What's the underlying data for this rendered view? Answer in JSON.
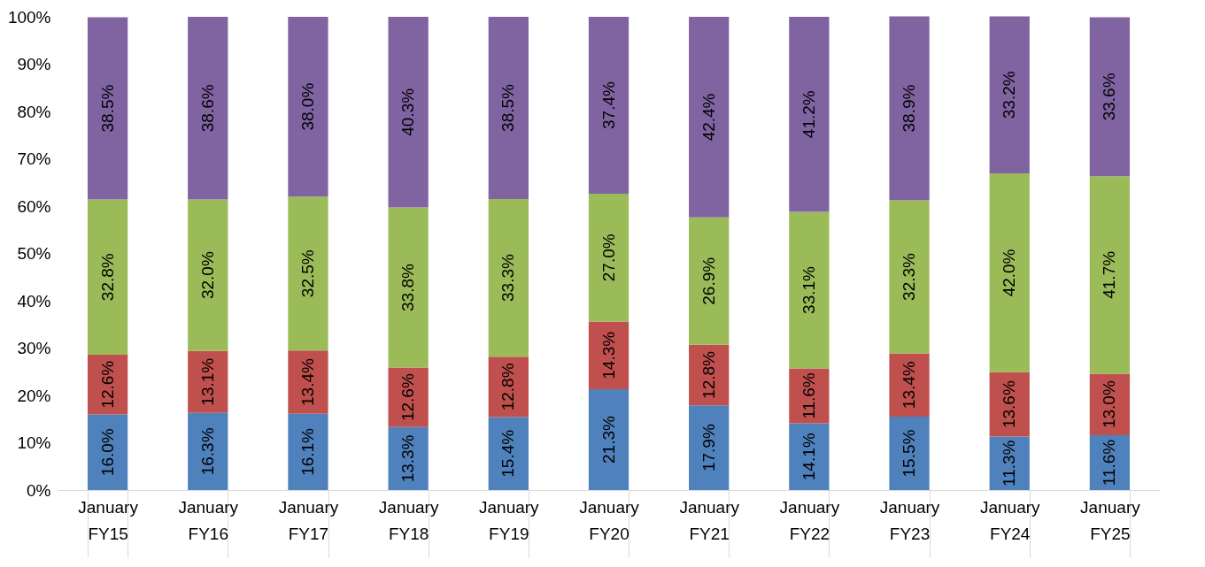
{
  "chart_data": {
    "type": "bar",
    "stacked": true,
    "categories": [
      "January\nFY15",
      "January\nFY16",
      "January\nFY17",
      "January\nFY18",
      "January\nFY19",
      "January\nFY20",
      "January\nFY21",
      "January\nFY22",
      "January\nFY23",
      "January\nFY24",
      "January\nFY25"
    ],
    "ylim": [
      0,
      100
    ],
    "yticks": [
      {
        "value": 0,
        "label": "0%"
      },
      {
        "value": 10,
        "label": "10%"
      },
      {
        "value": 20,
        "label": "20%"
      },
      {
        "value": 30,
        "label": "30%"
      },
      {
        "value": 40,
        "label": "40%"
      },
      {
        "value": 50,
        "label": "50%"
      },
      {
        "value": 60,
        "label": "60%"
      },
      {
        "value": 70,
        "label": "70%"
      },
      {
        "value": 80,
        "label": "80%"
      },
      {
        "value": 90,
        "label": "90%"
      },
      {
        "value": 100,
        "label": "100%"
      }
    ],
    "grid": false,
    "legend": false,
    "series": [
      {
        "color": "#4f81bd",
        "values": [
          16.0,
          16.3,
          16.1,
          13.3,
          15.4,
          21.3,
          17.9,
          14.1,
          15.5,
          11.3,
          11.6
        ],
        "value_labels": [
          "16.0%",
          "16.3%",
          "16.1%",
          "13.3%",
          "15.4%",
          "21.3%",
          "17.9%",
          "14.1%",
          "15.5%",
          "11.3%",
          "11.6%"
        ]
      },
      {
        "color": "#c0504d",
        "values": [
          12.6,
          13.1,
          13.4,
          12.6,
          12.8,
          14.3,
          12.8,
          11.6,
          13.4,
          13.6,
          13.0
        ],
        "value_labels": [
          "12.6%",
          "13.1%",
          "13.4%",
          "12.6%",
          "12.8%",
          "14.3%",
          "12.8%",
          "11.6%",
          "13.4%",
          "13.6%",
          "13.0%"
        ]
      },
      {
        "color": "#9bbb59",
        "values": [
          32.8,
          32.0,
          32.5,
          33.8,
          33.3,
          27.0,
          26.9,
          33.1,
          32.3,
          42.0,
          41.7
        ],
        "value_labels": [
          "32.8%",
          "32.0%",
          "32.5%",
          "33.8%",
          "33.3%",
          "27.0%",
          "26.9%",
          "33.1%",
          "32.3%",
          "42.0%",
          "41.7%"
        ]
      },
      {
        "color": "#8064a2",
        "values": [
          38.5,
          38.6,
          38.0,
          40.3,
          38.5,
          37.4,
          42.4,
          41.2,
          38.9,
          33.2,
          33.6
        ],
        "value_labels": [
          "38.5%",
          "38.6%",
          "38.0%",
          "40.3%",
          "38.5%",
          "37.4%",
          "42.4%",
          "41.2%",
          "38.9%",
          "33.2%",
          "33.6%"
        ]
      }
    ]
  }
}
